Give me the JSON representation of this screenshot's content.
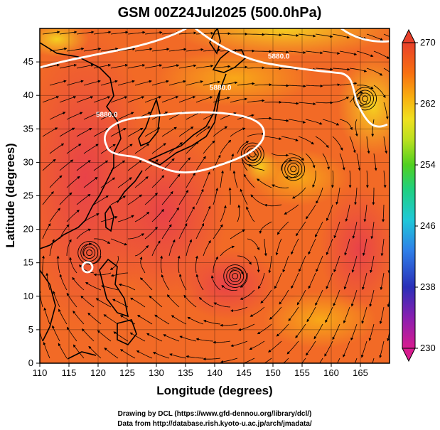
{
  "chart_data": {
    "type": "heatmap",
    "title": "GSM 00Z24Jul2025 (500.0hPa)",
    "xlabel": "Longitude (degrees)",
    "ylabel": "Latitude  (degrees)",
    "xlim": [
      110,
      170
    ],
    "ylim": [
      0,
      50
    ],
    "xticks": [
      110,
      115,
      120,
      125,
      130,
      135,
      140,
      145,
      150,
      155,
      160,
      165
    ],
    "yticks": [
      0,
      5,
      10,
      15,
      20,
      25,
      30,
      35,
      40,
      45
    ],
    "colorbar": {
      "min": 230,
      "max": 270,
      "ticks": [
        230,
        238,
        246,
        254,
        262,
        270
      ],
      "colors": [
        "#d81b8f",
        "#7a1fb0",
        "#1f2fb8",
        "#2f7fe8",
        "#20c8d8",
        "#20d080",
        "#50d020",
        "#b8e020",
        "#f0e020",
        "#f8b010",
        "#f87010",
        "#e83a2a"
      ]
    },
    "contours": [
      {
        "label": "5880.0",
        "lon": 141,
        "lat": 40.8
      },
      {
        "label": "5880.0",
        "lon": 151,
        "lat": 45.5
      },
      {
        "label": "5880.0",
        "lon": 121.5,
        "lat": 36.8
      }
    ],
    "vortices": [
      {
        "lon": 146.5,
        "lat": 31.2
      },
      {
        "lon": 165.8,
        "lat": 39.5
      },
      {
        "lon": 153.5,
        "lat": 29.0
      },
      {
        "lon": 143.5,
        "lat": 13.0
      },
      {
        "lon": 118.5,
        "lat": 16.5
      }
    ],
    "credit_lines": [
      "Drawing by DCL (https://www.gfd-dennou.org/library/dcl/)",
      "Data from http://database.rish.kyoto-u.ac.jp/arch/jmadata/"
    ]
  }
}
